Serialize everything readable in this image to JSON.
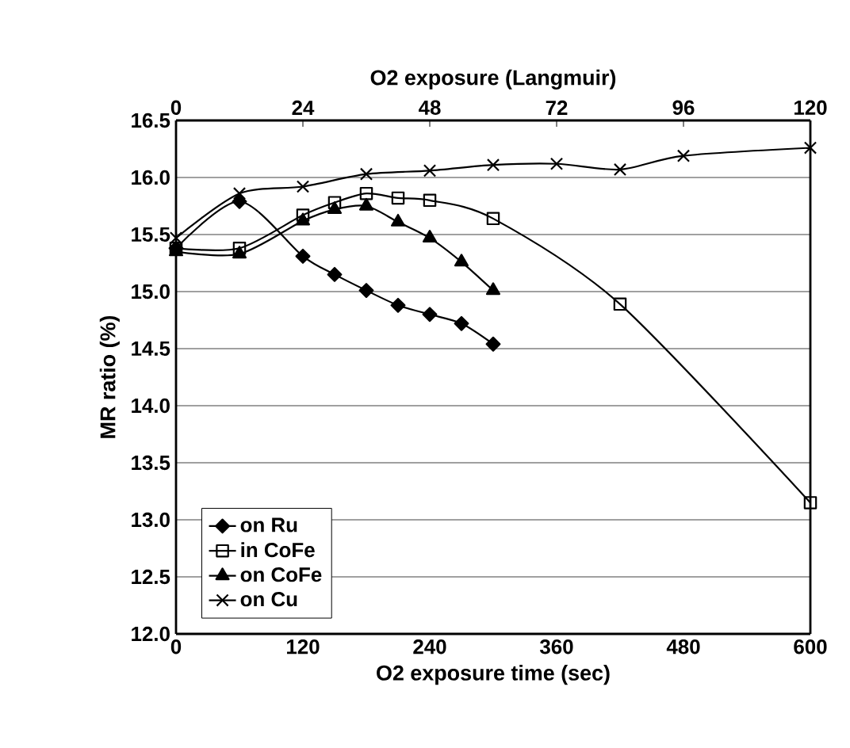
{
  "chart_data": {
    "type": "line",
    "xlabel": "O2 exposure time (sec)",
    "ylabel": "MR ratio (%)",
    "x2label": "O2 exposure (Langmuir)",
    "xlim": [
      0,
      600
    ],
    "xticks": [
      0,
      120,
      240,
      360,
      480,
      600
    ],
    "x2lim": [
      0,
      120
    ],
    "x2ticks": [
      0,
      24,
      48,
      72,
      96,
      120
    ],
    "ylim": [
      12.0,
      16.5
    ],
    "yticks": [
      {
        "value": 12.0,
        "label": "12.0"
      },
      {
        "value": 12.5,
        "label": "12.5"
      },
      {
        "value": 13.0,
        "label": "13.0"
      },
      {
        "value": 13.5,
        "label": "13.5"
      },
      {
        "value": 14.0,
        "label": "14.0"
      },
      {
        "value": 14.5,
        "label": "14.5"
      },
      {
        "value": 15.0,
        "label": "15.0"
      },
      {
        "value": 15.5,
        "label": "15.5"
      },
      {
        "value": 16.0,
        "label": "16.0"
      },
      {
        "value": 16.5,
        "label": "16.5"
      }
    ],
    "grid": "y",
    "legend": "bottom left",
    "line_style": "solid",
    "series": [
      {
        "name": "on Ru",
        "color": "#000000",
        "marker": "diamond",
        "x": [
          0,
          60,
          120,
          150,
          180,
          210,
          240,
          270,
          300
        ],
        "values": [
          15.38,
          15.79,
          15.31,
          15.15,
          15.01,
          14.88,
          14.8,
          14.72,
          14.54
        ]
      },
      {
        "name": "in CoFe",
        "color": "#000000",
        "marker": "square",
        "x": [
          0,
          60,
          120,
          150,
          180,
          210,
          240,
          300,
          420,
          600
        ],
        "values": [
          15.38,
          15.38,
          15.67,
          15.78,
          15.86,
          15.82,
          15.8,
          15.64,
          14.89,
          13.15
        ]
      },
      {
        "name": "on CoFe",
        "color": "#000000",
        "marker": "triangle",
        "x": [
          0,
          60,
          120,
          150,
          180,
          210,
          240,
          270,
          300
        ],
        "values": [
          15.35,
          15.33,
          15.62,
          15.72,
          15.75,
          15.61,
          15.47,
          15.26,
          15.01
        ]
      },
      {
        "name": "on Cu",
        "color": "#000000",
        "marker": "cross",
        "x": [
          0,
          60,
          120,
          180,
          240,
          300,
          360,
          420,
          480,
          600
        ],
        "values": [
          15.47,
          15.86,
          15.92,
          16.03,
          16.06,
          16.11,
          16.12,
          16.07,
          16.19,
          16.26
        ]
      }
    ]
  }
}
